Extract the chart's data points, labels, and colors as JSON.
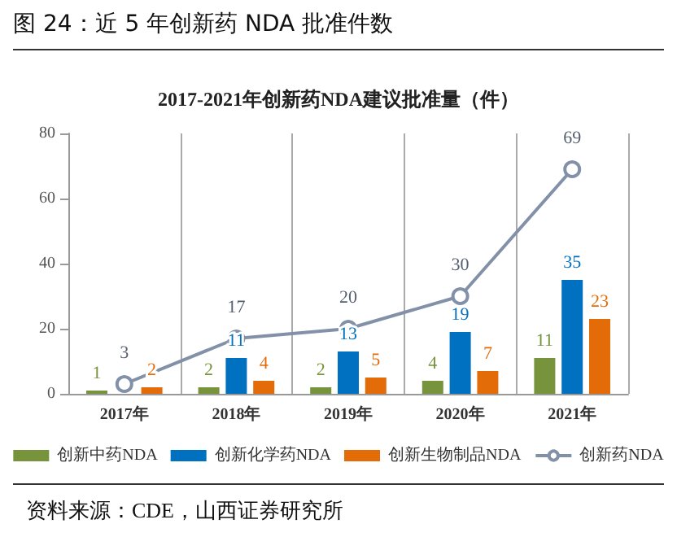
{
  "chart_data": {
    "type": "bar",
    "title": "图 24：近 5 年创新药 NDA 批准件数",
    "subtitle": "2017-2021年创新药NDA建议批准量（件）",
    "categories": [
      "2017年",
      "2018年",
      "2019年",
      "2020年",
      "2021年"
    ],
    "series": [
      {
        "name": "创新中药NDA",
        "color": "#77933c",
        "values": [
          1,
          2,
          2,
          4,
          11
        ]
      },
      {
        "name": "创新化学药NDA",
        "color": "#0070c0",
        "values": [
          null,
          11,
          13,
          19,
          35
        ]
      },
      {
        "name": "创新生物制品NDA",
        "color": "#e36c09",
        "values": [
          2,
          4,
          5,
          7,
          23
        ]
      },
      {
        "name": "创新药NDA",
        "type": "line",
        "color": "#8391a8",
        "values": [
          3,
          17,
          20,
          30,
          69
        ]
      }
    ],
    "ylim": [
      0,
      80
    ],
    "yticks": [
      0,
      20,
      40,
      60,
      80
    ],
    "grid": "x",
    "legend": "bottom",
    "marker": "circle",
    "data_labels": true,
    "annotations": [
      "资料来源：CDE，山西证券研究所"
    ]
  }
}
